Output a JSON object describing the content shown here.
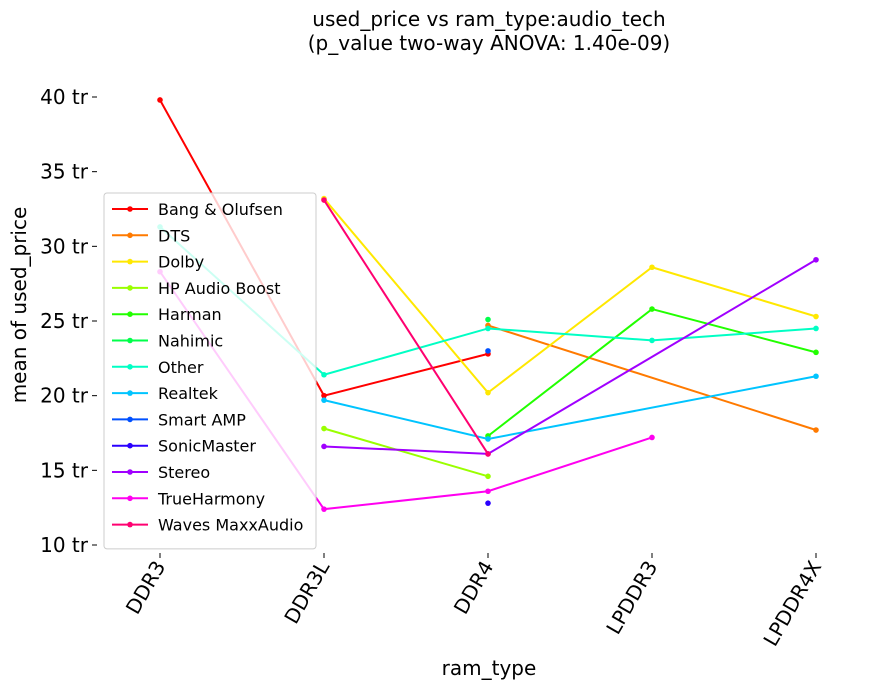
{
  "chart_data": {
    "type": "line",
    "title": "used_price vs ram_type:audio_tech",
    "subtitle": "(p_value two-way ANOVA: 1.40e-09)",
    "xlabel": "ram_type",
    "ylabel": "mean of used_price",
    "categories": [
      "DDR3",
      "DDR3L",
      "DDR4",
      "LPDDR3",
      "LPDDR4X"
    ],
    "ylim": [
      10,
      40
    ],
    "yticks": [
      10,
      15,
      20,
      25,
      30,
      35,
      40
    ],
    "ytick_suffix": " tr",
    "legend_position": "center-left",
    "grid": false,
    "series": [
      {
        "name": "Bang & Olufsen",
        "color": "#ff0000",
        "values": [
          39.8,
          20.0,
          22.8,
          null,
          null
        ]
      },
      {
        "name": "DTS",
        "color": "#ff7a00",
        "values": [
          null,
          null,
          24.7,
          null,
          17.7
        ]
      },
      {
        "name": "Dolby",
        "color": "#ffe800",
        "values": [
          null,
          33.2,
          20.2,
          28.6,
          25.3
        ]
      },
      {
        "name": "HP Audio Boost",
        "color": "#9aff00",
        "values": [
          null,
          17.8,
          14.6,
          null,
          null
        ]
      },
      {
        "name": "Harman",
        "color": "#22ff00",
        "values": [
          null,
          null,
          17.3,
          25.8,
          22.9
        ]
      },
      {
        "name": "Nahimic",
        "color": "#00ff4a",
        "values": [
          null,
          null,
          25.1,
          null,
          null
        ]
      },
      {
        "name": "Other",
        "color": "#00ffc4",
        "values": [
          31.3,
          21.4,
          24.5,
          23.7,
          24.5
        ]
      },
      {
        "name": "Realtek",
        "color": "#00c4ff",
        "values": [
          null,
          19.7,
          17.1,
          null,
          21.3
        ]
      },
      {
        "name": "Smart AMP",
        "color": "#0050ff",
        "values": [
          null,
          null,
          23.0,
          null,
          null
        ]
      },
      {
        "name": "SonicMaster",
        "color": "#2a00ff",
        "values": [
          null,
          null,
          12.8,
          null,
          null
        ]
      },
      {
        "name": "Stereo",
        "color": "#a000ff",
        "values": [
          null,
          16.6,
          16.1,
          null,
          29.1
        ]
      },
      {
        "name": "TrueHarmony",
        "color": "#ff00f0",
        "values": [
          28.3,
          12.4,
          13.6,
          17.2,
          null
        ]
      },
      {
        "name": "Waves MaxxAudio",
        "color": "#ff0070",
        "values": [
          null,
          33.1,
          16.1,
          null,
          null
        ]
      }
    ]
  }
}
